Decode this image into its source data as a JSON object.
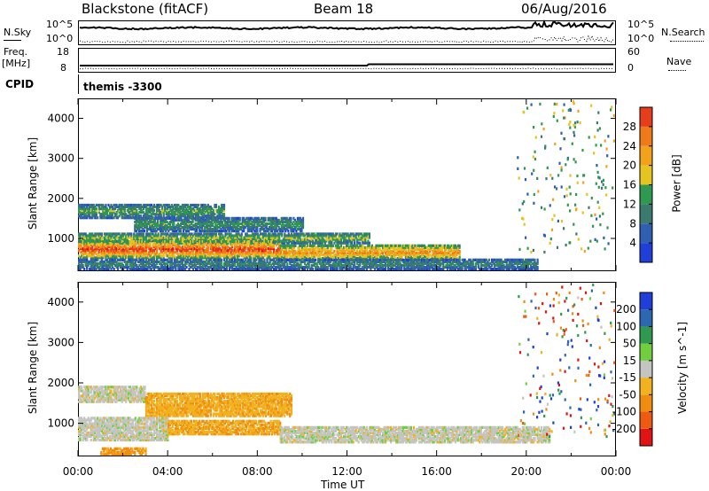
{
  "header": {
    "station": "Blackstone (fitACF)",
    "beam": "Beam 18",
    "date": "06/Aug/2016"
  },
  "strip1": {
    "left_label": "N.Sky",
    "right_label": "N.Search",
    "left_ticks": [
      "10^5",
      "10^0"
    ],
    "right_ticks": [
      "10^5",
      "10^0"
    ]
  },
  "strip2": {
    "left_label_1": "Freq.",
    "left_label_2": "[MHz]",
    "right_label": "Nave",
    "left_ticks": [
      "18",
      "8"
    ],
    "right_ticks": [
      "60",
      "0"
    ]
  },
  "cpid": {
    "label": "CPID",
    "value": "themis -3300"
  },
  "chart_data": [
    {
      "type": "heatmap",
      "name": "power",
      "ylabel": "Slant Range [km]",
      "y_ticks": [
        1000,
        2000,
        3000,
        4000
      ],
      "ylim": [
        180,
        4500
      ],
      "xlim": [
        0,
        24
      ],
      "colorbar_label": "Power [dB]",
      "colorbar_ticks": [
        "4",
        "8",
        "12",
        "16",
        "20",
        "24",
        "28"
      ],
      "colorbar_range": [
        0,
        30
      ],
      "bands": [
        {
          "t0": 0.0,
          "t1": 6.5,
          "r0": 1480,
          "r1": 1820,
          "level": 11
        },
        {
          "t0": 2.5,
          "t1": 10.0,
          "r0": 1150,
          "r1": 1500,
          "level": 10
        },
        {
          "t0": 0.0,
          "t1": 13.0,
          "r0": 850,
          "r1": 1100,
          "level": 13
        },
        {
          "t0": 0.0,
          "t1": 9.0,
          "r0": 480,
          "r1": 900,
          "level": 24
        },
        {
          "t0": 9.0,
          "t1": 17.0,
          "r0": 420,
          "r1": 820,
          "level": 19
        },
        {
          "t0": 0.0,
          "t1": 20.5,
          "r0": 200,
          "r1": 450,
          "level": 9
        }
      ]
    },
    {
      "type": "heatmap",
      "name": "velocity",
      "ylabel": "Slant Range [km]",
      "xlabel": "Time UT",
      "y_ticks": [
        1000,
        2000,
        3000,
        4000
      ],
      "ylim": [
        180,
        4500
      ],
      "xlim": [
        0,
        24
      ],
      "x_ticks": [
        "00:00",
        "04:00",
        "08:00",
        "12:00",
        "16:00",
        "20:00",
        "00:00"
      ],
      "colorbar_label": "Velocity [m s^-1]",
      "colorbar_ticks": [
        "200",
        "100",
        "50",
        "15",
        "-15",
        "-50",
        "-100",
        "-200"
      ],
      "bands": [
        {
          "t0": 0.0,
          "t1": 3.0,
          "r0": 1500,
          "r1": 1900,
          "level": 0
        },
        {
          "t0": 3.0,
          "t1": 9.5,
          "r0": 1150,
          "r1": 1700,
          "level": -40
        },
        {
          "t0": 0.0,
          "t1": 4.0,
          "r0": 550,
          "r1": 1100,
          "level": 0
        },
        {
          "t0": 4.0,
          "t1": 9.0,
          "r0": 700,
          "r1": 1050,
          "level": -45
        },
        {
          "t0": 9.0,
          "t1": 21.0,
          "r0": 500,
          "r1": 900,
          "level": 0
        },
        {
          "t0": 1.0,
          "t1": 3.0,
          "r0": 200,
          "r1": 380,
          "level": -60
        }
      ]
    }
  ]
}
